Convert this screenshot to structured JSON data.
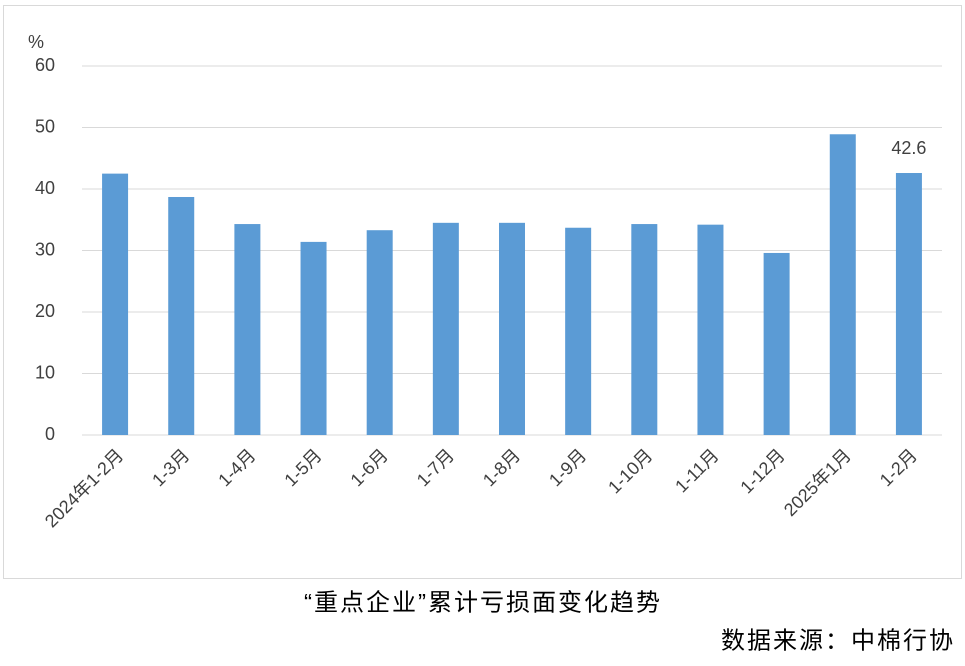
{
  "chart_data": {
    "type": "bar",
    "title": "“重点企业”累计亏损面变化趋势",
    "source": "数据来源：中棉行协",
    "y_label": "%",
    "categories": [
      "2024年1-2月",
      "1-3月",
      "1-4月",
      "1-5月",
      "1-6月",
      "1-7月",
      "1-8月",
      "1-9月",
      "1-10月",
      "1-11月",
      "1-12月",
      "2025年1月",
      "1-2月"
    ],
    "values": [
      42.5,
      38.7,
      34.3,
      31.4,
      33.3,
      34.5,
      34.5,
      33.7,
      34.3,
      34.2,
      29.6,
      48.9,
      42.6
    ],
    "value_labels": [
      null,
      null,
      null,
      null,
      null,
      null,
      null,
      null,
      null,
      null,
      null,
      null,
      "42.6"
    ],
    "color": "#5b9bd5",
    "ylim": [
      0,
      60
    ],
    "yticks": [
      0,
      10,
      20,
      30,
      40,
      50,
      60
    ],
    "grid": true
  }
}
